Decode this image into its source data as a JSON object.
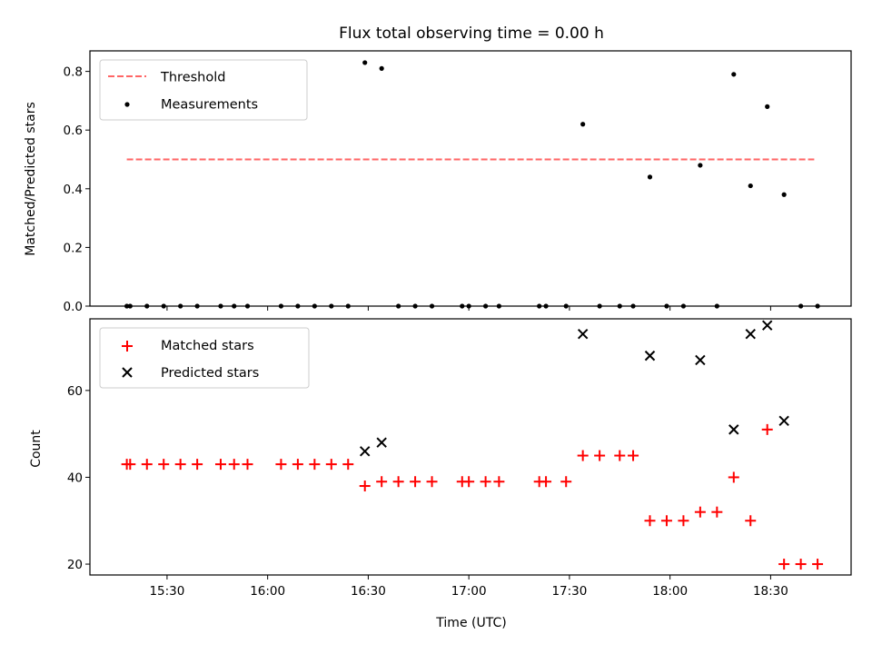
{
  "chart_data": [
    {
      "type": "scatter",
      "title": "Flux total observing time = 0.00 h",
      "xlabel": "",
      "ylabel": "Matched/Predicted stars",
      "x_ticks": [
        "15:30",
        "16:00",
        "16:30",
        "17:00",
        "17:30",
        "18:00",
        "18:30"
      ],
      "y_ticks": [
        "0.0",
        "0.2",
        "0.4",
        "0.6",
        "0.8"
      ],
      "ylim": [
        0,
        0.87
      ],
      "xlim": [
        "15:07",
        "18:54"
      ],
      "grid": false,
      "legend": "top-left",
      "series": [
        {
          "name": "Threshold",
          "style": "dashed-line",
          "color": "#ff6666",
          "points": [
            [
              "15:18",
              0.5
            ],
            [
              "18:43",
              0.5
            ]
          ]
        },
        {
          "name": "Measurements",
          "style": "dot",
          "color": "#000000",
          "points": [
            [
              "15:18",
              0
            ],
            [
              "15:19",
              0
            ],
            [
              "15:24",
              0
            ],
            [
              "15:29",
              0
            ],
            [
              "15:34",
              0
            ],
            [
              "15:39",
              0
            ],
            [
              "15:46",
              0
            ],
            [
              "15:50",
              0
            ],
            [
              "15:54",
              0
            ],
            [
              "16:04",
              0
            ],
            [
              "16:09",
              0
            ],
            [
              "16:14",
              0
            ],
            [
              "16:19",
              0
            ],
            [
              "16:24",
              0
            ],
            [
              "16:29",
              0.83
            ],
            [
              "16:34",
              0.81
            ],
            [
              "16:39",
              0
            ],
            [
              "16:44",
              0
            ],
            [
              "16:49",
              0
            ],
            [
              "16:58",
              0
            ],
            [
              "17:00",
              0
            ],
            [
              "17:05",
              0
            ],
            [
              "17:09",
              0
            ],
            [
              "17:21",
              0
            ],
            [
              "17:23",
              0
            ],
            [
              "17:29",
              0
            ],
            [
              "17:34",
              0.62
            ],
            [
              "17:39",
              0
            ],
            [
              "17:45",
              0
            ],
            [
              "17:49",
              0
            ],
            [
              "17:54",
              0.44
            ],
            [
              "17:59",
              0
            ],
            [
              "18:04",
              0
            ],
            [
              "18:09",
              0.48
            ],
            [
              "18:14",
              0
            ],
            [
              "18:19",
              0.79
            ],
            [
              "18:24",
              0.41
            ],
            [
              "18:29",
              0.68
            ],
            [
              "18:34",
              0.38
            ],
            [
              "18:39",
              0
            ],
            [
              "18:44",
              0
            ]
          ]
        }
      ]
    },
    {
      "type": "scatter",
      "title": "",
      "xlabel": "Time (UTC)",
      "ylabel": "Count",
      "x_ticks": [
        "15:30",
        "16:00",
        "16:30",
        "17:00",
        "17:30",
        "18:00",
        "18:30"
      ],
      "y_ticks": [
        "20",
        "40",
        "60"
      ],
      "ylim": [
        17.5,
        76.5
      ],
      "xlim": [
        "15:07",
        "18:54"
      ],
      "grid": false,
      "legend": "top-left",
      "series": [
        {
          "name": "Matched stars",
          "marker": "plus",
          "color": "#ff0000",
          "points": [
            [
              "15:18",
              43
            ],
            [
              "15:19",
              43
            ],
            [
              "15:24",
              43
            ],
            [
              "15:29",
              43
            ],
            [
              "15:34",
              43
            ],
            [
              "15:39",
              43
            ],
            [
              "15:46",
              43
            ],
            [
              "15:50",
              43
            ],
            [
              "15:54",
              43
            ],
            [
              "16:04",
              43
            ],
            [
              "16:09",
              43
            ],
            [
              "16:14",
              43
            ],
            [
              "16:19",
              43
            ],
            [
              "16:24",
              43
            ],
            [
              "16:29",
              38
            ],
            [
              "16:34",
              39
            ],
            [
              "16:39",
              39
            ],
            [
              "16:44",
              39
            ],
            [
              "16:49",
              39
            ],
            [
              "16:58",
              39
            ],
            [
              "17:00",
              39
            ],
            [
              "17:05",
              39
            ],
            [
              "17:09",
              39
            ],
            [
              "17:21",
              39
            ],
            [
              "17:23",
              39
            ],
            [
              "17:29",
              39
            ],
            [
              "17:34",
              45
            ],
            [
              "17:39",
              45
            ],
            [
              "17:45",
              45
            ],
            [
              "17:49",
              45
            ],
            [
              "17:54",
              30
            ],
            [
              "17:59",
              30
            ],
            [
              "18:04",
              30
            ],
            [
              "18:09",
              32
            ],
            [
              "18:14",
              32
            ],
            [
              "18:19",
              40
            ],
            [
              "18:24",
              30
            ],
            [
              "18:29",
              51
            ],
            [
              "18:34",
              20
            ],
            [
              "18:39",
              20
            ],
            [
              "18:44",
              20
            ]
          ]
        },
        {
          "name": "Predicted stars",
          "marker": "x",
          "color": "#000000",
          "points": [
            [
              "16:29",
              46
            ],
            [
              "16:34",
              48
            ],
            [
              "17:34",
              73
            ],
            [
              "17:54",
              68
            ],
            [
              "18:09",
              67
            ],
            [
              "18:19",
              51
            ],
            [
              "18:24",
              73
            ],
            [
              "18:29",
              75
            ],
            [
              "18:34",
              53
            ]
          ]
        }
      ]
    }
  ]
}
